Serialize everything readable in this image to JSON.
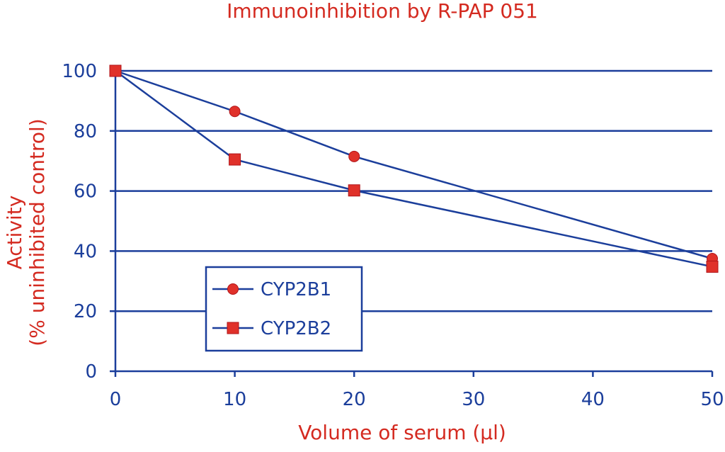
{
  "chart_data": {
    "type": "line",
    "title": "Immunoinhibition by R-PAP 051",
    "xlabel": "Volume of serum (µl)",
    "ylabel_line1": "Activity",
    "ylabel_line2": "(% uninhibited control)",
    "x_ticks": [
      0,
      10,
      20,
      30,
      40,
      50
    ],
    "y_ticks": [
      0,
      20,
      40,
      60,
      80,
      100
    ],
    "xlim": [
      0,
      50
    ],
    "ylim": [
      0,
      100
    ],
    "grid": "horizontal",
    "legend_position": "bottom-left",
    "series": [
      {
        "name": "CYP2B1",
        "marker": "circle",
        "x": [
          0,
          10,
          20,
          50
        ],
        "y": [
          100,
          86.5,
          71.5,
          37.5
        ]
      },
      {
        "name": "CYP2B2",
        "marker": "square",
        "x": [
          0,
          10,
          20,
          50
        ],
        "y": [
          100,
          70.5,
          60.2,
          34.8
        ]
      }
    ]
  },
  "colors": {
    "line": "#1b3e9b",
    "marker": "#e0312a",
    "text_accent": "#d42a20"
  }
}
